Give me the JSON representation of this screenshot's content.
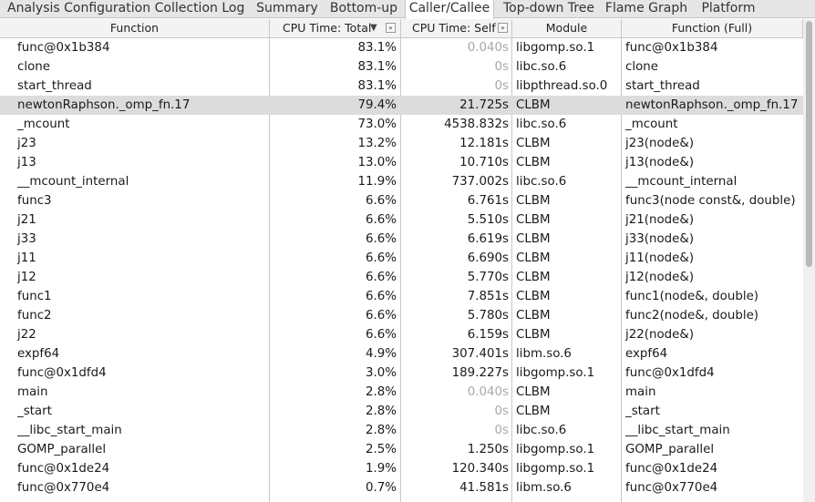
{
  "tabs": [
    {
      "label": "Analysis Configuration",
      "active": false
    },
    {
      "label": "Collection Log",
      "active": false
    },
    {
      "label": "Summary",
      "active": false
    },
    {
      "label": "Bottom-up",
      "active": false
    },
    {
      "label": "Caller/Callee",
      "active": true
    },
    {
      "label": "Top-down Tree",
      "active": false
    },
    {
      "label": "Flame Graph",
      "active": false
    },
    {
      "label": "Platform",
      "active": false
    }
  ],
  "columns": {
    "function": "Function",
    "cpu_total": "CPU Time: Total",
    "cpu_total_sort": "▼",
    "cpu_self": "CPU Time: Self",
    "expand_glyph": "»",
    "module": "Module",
    "function_full": "Function (Full)"
  },
  "rows": [
    {
      "function": "func@0x1b384",
      "total": "83.1%",
      "self": "0.040s",
      "module": "libgomp.so.1",
      "full": "func@0x1b384"
    },
    {
      "function": "clone",
      "total": "83.1%",
      "self": "0s",
      "module": "libc.so.6",
      "full": "clone"
    },
    {
      "function": "start_thread",
      "total": "83.1%",
      "self": "0s",
      "module": "libpthread.so.0",
      "full": "start_thread"
    },
    {
      "function": "newtonRaphson._omp_fn.17",
      "total": "79.4%",
      "self": "21.725s",
      "module": "CLBM",
      "full": "newtonRaphson._omp_fn.17"
    },
    {
      "function": "_mcount",
      "total": "73.0%",
      "self": "4538.832s",
      "module": "libc.so.6",
      "full": "_mcount"
    },
    {
      "function": "j23",
      "total": "13.2%",
      "self": "12.181s",
      "module": "CLBM",
      "full": "j23(node&)"
    },
    {
      "function": "j13",
      "total": "13.0%",
      "self": "10.710s",
      "module": "CLBM",
      "full": "j13(node&)"
    },
    {
      "function": "__mcount_internal",
      "total": "11.9%",
      "self": "737.002s",
      "module": "libc.so.6",
      "full": "__mcount_internal"
    },
    {
      "function": "func3",
      "total": "6.6%",
      "self": "6.761s",
      "module": "CLBM",
      "full": "func3(node const&, double)"
    },
    {
      "function": "j21",
      "total": "6.6%",
      "self": "5.510s",
      "module": "CLBM",
      "full": "j21(node&)"
    },
    {
      "function": "j33",
      "total": "6.6%",
      "self": "6.619s",
      "module": "CLBM",
      "full": "j33(node&)"
    },
    {
      "function": "j11",
      "total": "6.6%",
      "self": "6.690s",
      "module": "CLBM",
      "full": "j11(node&)"
    },
    {
      "function": "j12",
      "total": "6.6%",
      "self": "5.770s",
      "module": "CLBM",
      "full": "j12(node&)"
    },
    {
      "function": "func1",
      "total": "6.6%",
      "self": "7.851s",
      "module": "CLBM",
      "full": "func1(node&, double)"
    },
    {
      "function": "func2",
      "total": "6.6%",
      "self": "5.780s",
      "module": "CLBM",
      "full": "func2(node&, double)"
    },
    {
      "function": "j22",
      "total": "6.6%",
      "self": "6.159s",
      "module": "CLBM",
      "full": "j22(node&)"
    },
    {
      "function": "expf64",
      "total": "4.9%",
      "self": "307.401s",
      "module": "libm.so.6",
      "full": "expf64"
    },
    {
      "function": "func@0x1dfd4",
      "total": "3.0%",
      "self": "189.227s",
      "module": "libgomp.so.1",
      "full": "func@0x1dfd4"
    },
    {
      "function": "main",
      "total": "2.8%",
      "self": "0.040s",
      "module": "CLBM",
      "full": "main"
    },
    {
      "function": "_start",
      "total": "2.8%",
      "self": "0s",
      "module": "CLBM",
      "full": "_start"
    },
    {
      "function": "__libc_start_main",
      "total": "2.8%",
      "self": "0s",
      "module": "libc.so.6",
      "full": "__libc_start_main"
    },
    {
      "function": "GOMP_parallel",
      "total": "2.5%",
      "self": "1.250s",
      "module": "libgomp.so.1",
      "full": "GOMP_parallel"
    },
    {
      "function": "func@0x1de24",
      "total": "1.9%",
      "self": "120.340s",
      "module": "libgomp.so.1",
      "full": "func@0x1de24"
    },
    {
      "function": "func@0x770e4",
      "total": "0.7%",
      "self": "41.581s",
      "module": "libm.so.6",
      "full": "func@0x770e4"
    }
  ],
  "selected_row": 3,
  "colors": {
    "tabbar_bg": "#e6e6e6",
    "header_bg": "#f3f3f3",
    "selected_row_bg": "#dcdcdc",
    "dim_text": "#a8a8a8",
    "grid_line": "#c8c8c8"
  }
}
